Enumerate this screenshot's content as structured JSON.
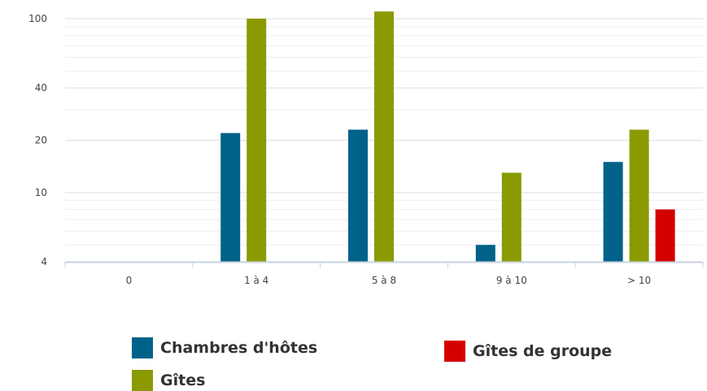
{
  "chart_data": {
    "type": "bar",
    "title": "",
    "xlabel": "",
    "ylabel": "",
    "scale": "log",
    "categories": [
      "0",
      "1 à 4",
      "5 à 8",
      "9 à 10",
      "> 10"
    ],
    "series": [
      {
        "name": "Chambres d'hôtes",
        "color": "#006289",
        "values": [
          null,
          22,
          23,
          5,
          15
        ]
      },
      {
        "name": "Gîtes",
        "color": "#8a9a00",
        "values": [
          null,
          100,
          110,
          13,
          23
        ]
      },
      {
        "name": "Gîtes de groupe",
        "color": "#d40000",
        "values": [
          null,
          null,
          null,
          null,
          8
        ]
      }
    ],
    "y_ticks": [
      4,
      10,
      20,
      40,
      100
    ],
    "y_tick_labels": [
      "4",
      "10",
      "20",
      "40",
      "100"
    ],
    "ylim": [
      4,
      115
    ],
    "grid": true,
    "legend_position": "bottom"
  }
}
